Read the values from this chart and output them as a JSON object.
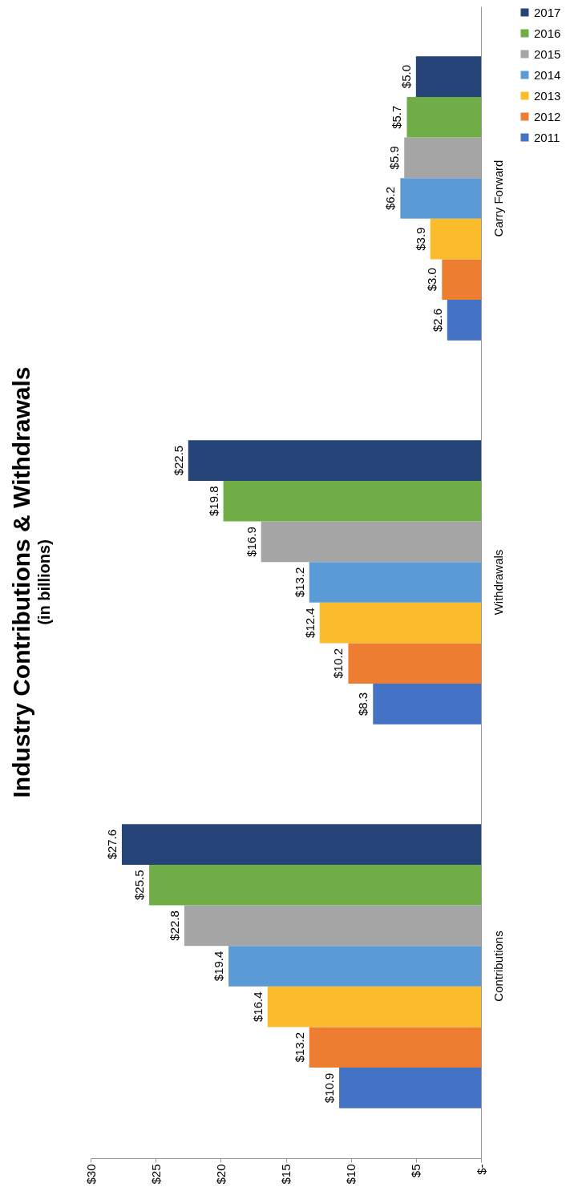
{
  "chart_data": {
    "type": "bar",
    "orientation": "horizontal",
    "title": "Industry Contributions & Withdrawals",
    "subtitle": "(in billions)",
    "categories": [
      "Carry Forward",
      "Withdrawals",
      "Contributions"
    ],
    "series": [
      {
        "name": "2011",
        "color": "#4472c4",
        "values": [
          2.6,
          8.3,
          10.9
        ],
        "value_labels": [
          "$2.6",
          "$8.3",
          "$10.9"
        ]
      },
      {
        "name": "2012",
        "color": "#ed7d31",
        "values": [
          3.0,
          10.2,
          13.2
        ],
        "value_labels": [
          "$3.0",
          "$10.2",
          "$13.2"
        ]
      },
      {
        "name": "2013",
        "color": "#fbbc2c",
        "values": [
          3.9,
          12.4,
          16.4
        ],
        "value_labels": [
          "$3.9",
          "$12.4",
          "$16.4"
        ]
      },
      {
        "name": "2014",
        "color": "#5b9bd5",
        "values": [
          6.2,
          13.2,
          19.4
        ],
        "value_labels": [
          "$6.2",
          "$13.2",
          "$19.4"
        ]
      },
      {
        "name": "2015",
        "color": "#a5a5a5",
        "values": [
          5.9,
          16.9,
          22.8
        ],
        "value_labels": [
          "$5.9",
          "$16.9",
          "$22.8"
        ]
      },
      {
        "name": "2016",
        "color": "#70ad47",
        "values": [
          5.7,
          19.8,
          25.5
        ],
        "value_labels": [
          "$5.7",
          "$19.8",
          "$25.5"
        ]
      },
      {
        "name": "2017",
        "color": "#264478",
        "values": [
          5.0,
          22.5,
          27.6
        ],
        "value_labels": [
          "$5.0",
          "$22.5",
          "$27.6"
        ]
      }
    ],
    "xlim": [
      30,
      0
    ],
    "xticks": [
      {
        "value": 30,
        "label": "$30"
      },
      {
        "value": 25,
        "label": "$25"
      },
      {
        "value": 20,
        "label": "$20"
      },
      {
        "value": 15,
        "label": "$15"
      },
      {
        "value": 10,
        "label": "$10"
      },
      {
        "value": 5,
        "label": "$5"
      },
      {
        "value": 0,
        "label": "$-"
      }
    ],
    "grid": false,
    "legend": "right"
  }
}
